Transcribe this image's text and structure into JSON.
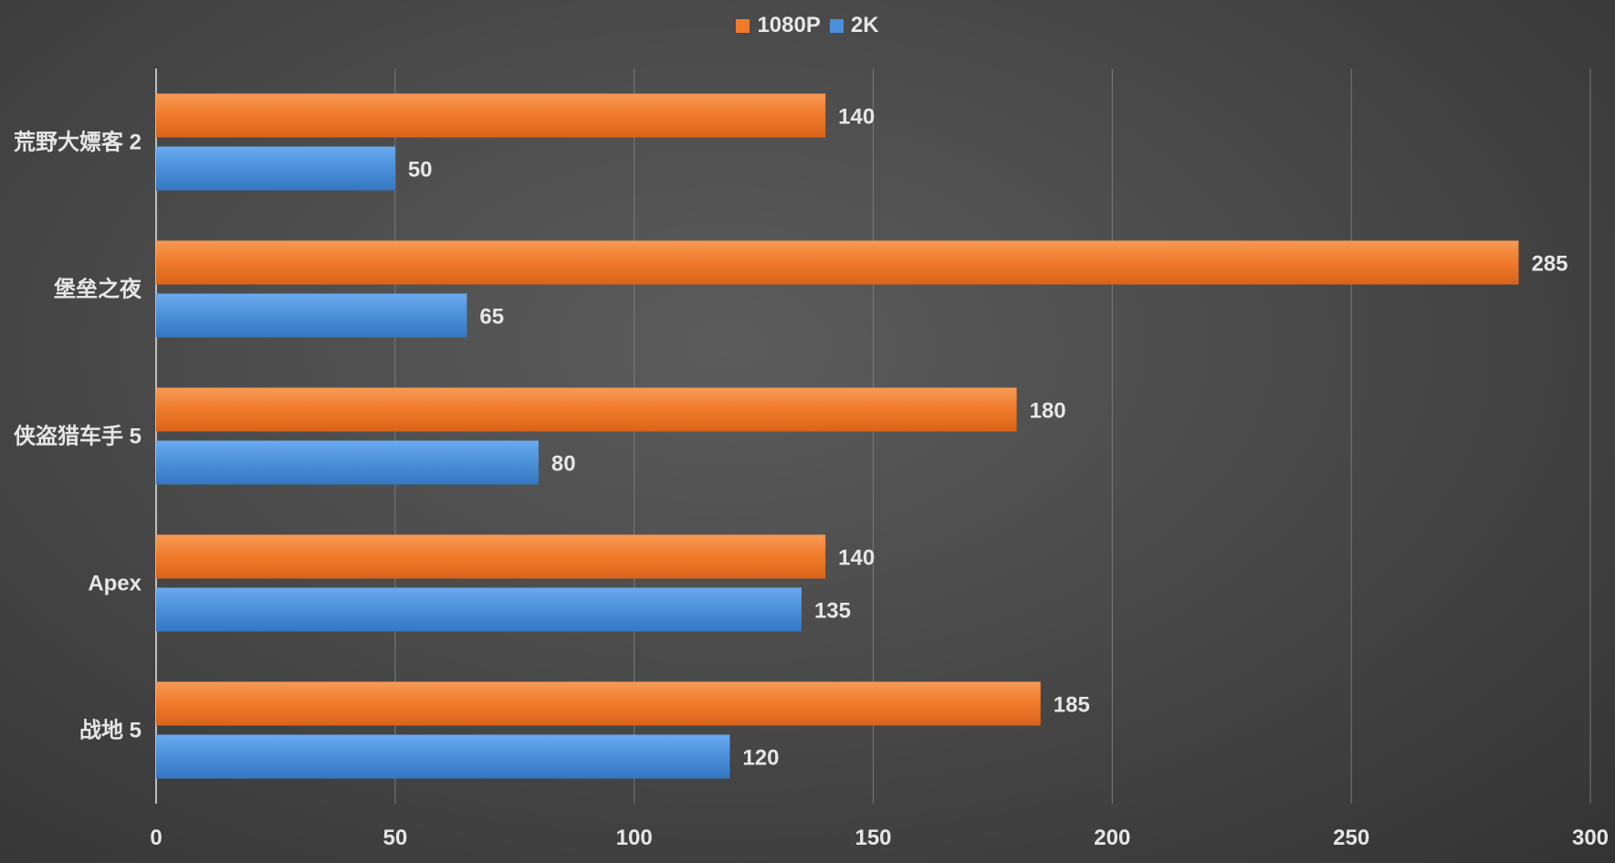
{
  "chart_data": {
    "type": "bar",
    "orientation": "horizontal",
    "title": "",
    "categories": [
      "荒野大嫖客 2",
      "堡垒之夜",
      "侠盗猎车手 5",
      "Apex",
      "战地 5"
    ],
    "series": [
      {
        "name": "1080P",
        "color": "#f07a2a",
        "values": [
          140,
          285,
          180,
          140,
          185
        ]
      },
      {
        "name": "2K",
        "color": "#4a90d9",
        "values": [
          50,
          65,
          80,
          135,
          120
        ]
      }
    ],
    "xlim": [
      0,
      300
    ],
    "xticks": [
      0,
      50,
      100,
      150,
      200,
      250,
      300
    ],
    "grid": true,
    "legend_position": "top-center",
    "xlabel": "",
    "ylabel": ""
  }
}
